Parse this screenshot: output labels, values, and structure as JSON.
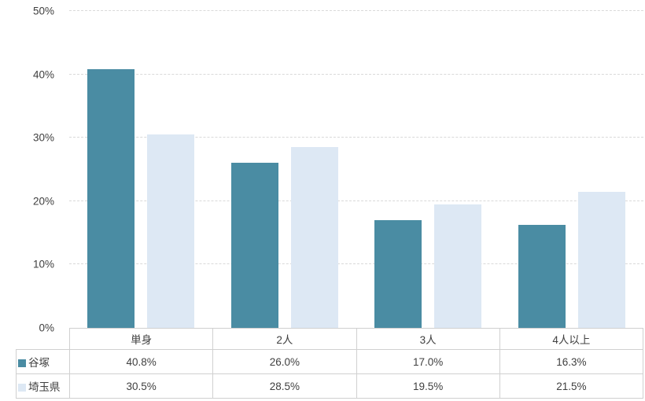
{
  "chart_data": {
    "type": "bar",
    "title": "",
    "categories": [
      "単身",
      "2人",
      "3人",
      "4人以上"
    ],
    "series": [
      {
        "name": "谷塚",
        "color": "#4a8ca3",
        "values": [
          40.8,
          26.0,
          17.0,
          16.3
        ],
        "labels": [
          "40.8%",
          "26.0%",
          "17.0%",
          "16.3%"
        ]
      },
      {
        "name": "埼玉県",
        "color": "#dde8f4",
        "values": [
          30.5,
          28.5,
          19.5,
          21.5
        ],
        "labels": [
          "30.5%",
          "28.5%",
          "19.5%",
          "21.5%"
        ]
      }
    ],
    "ylim": [
      0,
      50
    ],
    "ytick_step": 10,
    "yticks_top_to_bottom": [
      "50%",
      "40%",
      "30%",
      "20%",
      "10%",
      "0%"
    ],
    "xlabel": "",
    "ylabel": "",
    "grid": "horizontal dashed gridlines every 10%",
    "legend_position": "left column of data table below chart"
  },
  "styles": {
    "background": "#ffffff",
    "grid_color": "#d9d9d9",
    "table_border_color": "#d0d0d0",
    "text_color": "#404040"
  }
}
